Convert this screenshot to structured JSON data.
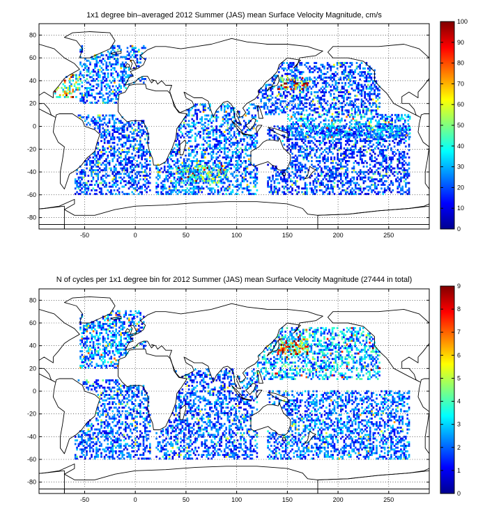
{
  "chart_data": [
    {
      "type": "heatmap",
      "title": "1x1 degree bin–averaged 2012 Summer (JAS) mean Surface Velocity Magnitude, cm/s",
      "xlabel": "",
      "ylabel": "",
      "xlim": [
        -95,
        290
      ],
      "ylim": [
        -90,
        90
      ],
      "x_ticks": [
        -50,
        0,
        50,
        100,
        150,
        200,
        250
      ],
      "y_ticks": [
        -80,
        -60,
        -40,
        -20,
        0,
        20,
        40,
        60,
        80
      ],
      "grid": true,
      "colorbar": {
        "range": [
          0,
          100
        ],
        "ticks": [
          0,
          10,
          20,
          30,
          40,
          50,
          60,
          70,
          80,
          90,
          100
        ],
        "colormap": "jet"
      },
      "regions": [
        {
          "x": [
            -60,
            15
          ],
          "y": [
            -60,
            10
          ],
          "mean": 22
        },
        {
          "x": [
            -55,
            10
          ],
          "y": [
            20,
            70
          ],
          "mean": 25
        },
        {
          "x": [
            -80,
            -55
          ],
          "y": [
            25,
            45
          ],
          "mean": 55
        },
        {
          "x": [
            20,
            120
          ],
          "y": [
            -60,
            20
          ],
          "mean": 25
        },
        {
          "x": [
            40,
            90
          ],
          "y": [
            -50,
            -35
          ],
          "mean": 45
        },
        {
          "x": [
            130,
            270
          ],
          "y": [
            -60,
            0
          ],
          "mean": 20
        },
        {
          "x": [
            120,
            240
          ],
          "y": [
            10,
            55
          ],
          "mean": 22
        },
        {
          "x": [
            140,
            170
          ],
          "y": [
            32,
            42
          ],
          "mean": 70
        },
        {
          "x": [
            150,
            270
          ],
          "y": [
            -10,
            10
          ],
          "mean": 30
        }
      ]
    },
    {
      "type": "heatmap",
      "title": "N of cycles per 1x1 degree bin for 2012 Summer (JAS) mean Surface Velocity Magnitude (27444 in total)",
      "xlabel": "",
      "ylabel": "",
      "xlim": [
        -95,
        290
      ],
      "ylim": [
        -90,
        90
      ],
      "x_ticks": [
        -50,
        0,
        50,
        100,
        150,
        200,
        250
      ],
      "y_ticks": [
        -80,
        -60,
        -40,
        -20,
        0,
        20,
        40,
        60,
        80
      ],
      "grid": true,
      "colorbar": {
        "range": [
          0,
          9
        ],
        "ticks": [
          0,
          1,
          2,
          3,
          4,
          5,
          6,
          7,
          8,
          9
        ],
        "colormap": "jet"
      },
      "regions": [
        {
          "x": [
            -60,
            15
          ],
          "y": [
            -60,
            10
          ],
          "mean": 2
        },
        {
          "x": [
            -55,
            10
          ],
          "y": [
            20,
            70
          ],
          "mean": 2.5
        },
        {
          "x": [
            20,
            120
          ],
          "y": [
            -60,
            20
          ],
          "mean": 2
        },
        {
          "x": [
            130,
            270
          ],
          "y": [
            -60,
            0
          ],
          "mean": 2.2
        },
        {
          "x": [
            120,
            240
          ],
          "y": [
            10,
            55
          ],
          "mean": 3
        },
        {
          "x": [
            140,
            170
          ],
          "y": [
            32,
            45
          ],
          "mean": 6.5
        }
      ]
    }
  ]
}
